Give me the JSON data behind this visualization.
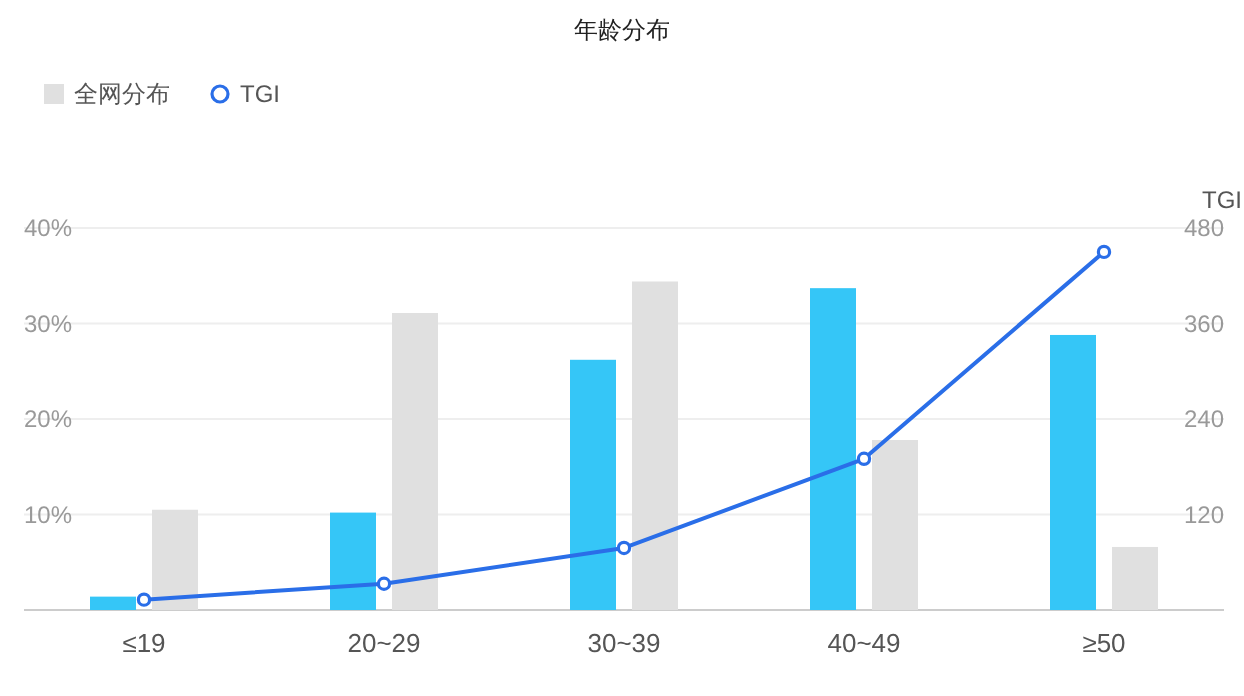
{
  "chart_data": {
    "type": "bar",
    "title": "年龄分布",
    "categories": [
      "≤19",
      "20~29",
      "30~39",
      "40~49",
      "≥50"
    ],
    "series": [
      {
        "color": "#35c6f7",
        "values": [
          1.4,
          10.2,
          26.2,
          33.7,
          28.8
        ]
      },
      {
        "name": "全网分布",
        "color": "#e0e0e0",
        "values": [
          10.5,
          31.1,
          34.4,
          17.8,
          6.6
        ]
      },
      {
        "name": "TGI",
        "type": "line",
        "axis": "y2",
        "color": "#2a6ee8",
        "marker": "circle",
        "values": [
          13,
          33,
          78,
          190,
          450
        ]
      }
    ],
    "ylim": [
      0,
      40
    ],
    "yticks": [
      {
        "value": 10,
        "label": "10%"
      },
      {
        "value": 20,
        "label": "20%"
      },
      {
        "value": 30,
        "label": "30%"
      },
      {
        "value": 40,
        "label": "40%"
      }
    ],
    "y2label": "TGI",
    "y2lim": [
      0,
      480
    ],
    "y2ticks": [
      120,
      240,
      360,
      480
    ],
    "grid": "y",
    "legend": "top left"
  }
}
